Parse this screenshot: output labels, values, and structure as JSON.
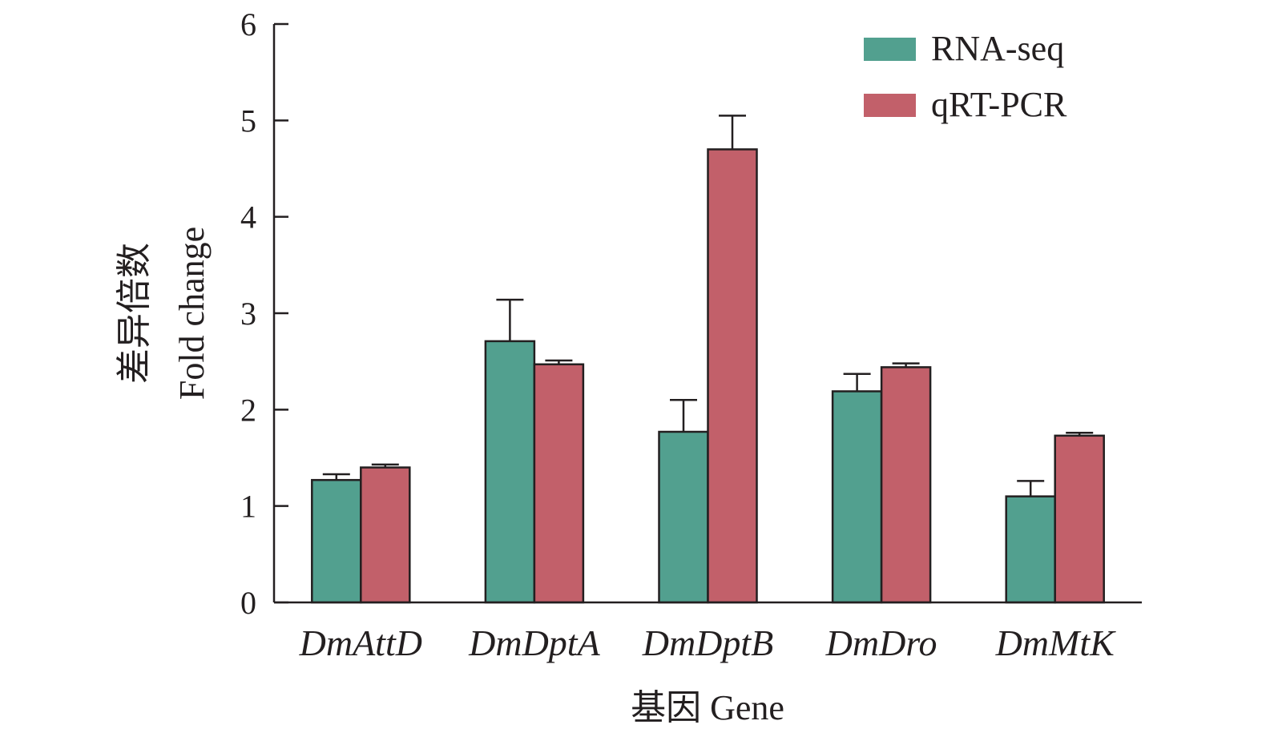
{
  "chart_data": {
    "type": "bar",
    "categories": [
      "DmAttD",
      "DmDptA",
      "DmDptB",
      "DmDro",
      "DmMtK"
    ],
    "series": [
      {
        "name": "RNA-seq",
        "color": "#52a08f",
        "values": [
          1.27,
          2.71,
          1.77,
          2.19,
          1.1
        ],
        "errors": [
          0.06,
          0.43,
          0.33,
          0.18,
          0.16
        ]
      },
      {
        "name": "qRT-PCR",
        "color": "#c2606a",
        "values": [
          1.4,
          2.47,
          4.7,
          2.44,
          1.73
        ],
        "errors": [
          0.03,
          0.04,
          0.35,
          0.04,
          0.03
        ]
      }
    ],
    "xlabel": "基因 Gene",
    "ylabel": [
      "差异倍数",
      "Fold change"
    ],
    "ylim": [
      0,
      6
    ],
    "yticks": [
      0,
      1,
      2,
      3,
      4,
      5,
      6
    ],
    "legend_position": "top-right",
    "grid": false,
    "axis_color": "#231f20",
    "bar_edge_color": "#231f20"
  }
}
